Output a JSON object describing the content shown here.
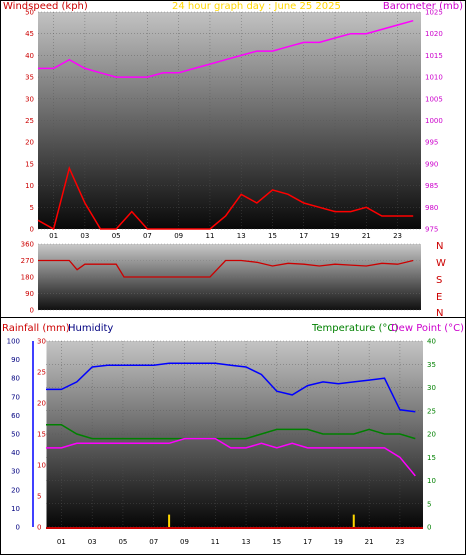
{
  "header": {
    "left_label": "Windspeed (kph)",
    "center_label": "24 hour graph day : June 25 2025",
    "right_label": "Barometer (mb)"
  },
  "direction_labels": [
    "N",
    "W",
    "S",
    "E",
    "N"
  ],
  "lower_header": {
    "rainfall_label": "Rainfall (mm)",
    "humidity_label": "Humidity",
    "temperature_label": "Temperature (°C)",
    "dewpoint_label": "Dew Point (°C)"
  },
  "colors": {
    "wind": "#ff0000",
    "gust": "#ff0000",
    "barometer": "#ff00ff",
    "direction": "#cc0000",
    "humidity": "#0000ff",
    "temperature": "#008000",
    "dewpoint": "#ff00ff",
    "rainfall": "#ffd700",
    "title": "#ffd700",
    "rain_axis": "#0000ff",
    "label_red": "#cc0000",
    "label_navy": "#000080",
    "label_green": "#008000",
    "label_magenta": "#cc00cc"
  },
  "x_ticks": [
    "01",
    "03",
    "05",
    "07",
    "09",
    "11",
    "13",
    "15",
    "17",
    "19",
    "21",
    "23"
  ],
  "chart_data": [
    {
      "type": "line",
      "title": "24 hour graph day : June 25 2025",
      "x": [
        0,
        1,
        2,
        3,
        4,
        5,
        6,
        7,
        8,
        9,
        10,
        11,
        12,
        13,
        14,
        15,
        16,
        17,
        18,
        19,
        20,
        21,
        22,
        23,
        24
      ],
      "series": [
        {
          "name": "Barometer (mb)",
          "axis": "right",
          "values": [
            1012,
            1012,
            1014,
            1012,
            1011,
            1010,
            1010,
            1010,
            1011,
            1011,
            1012,
            1013,
            1014,
            1015,
            1016,
            1016,
            1017,
            1018,
            1018,
            1019,
            1020,
            1020,
            1021,
            1022,
            1023
          ]
        },
        {
          "name": "Windspeed (kph)",
          "axis": "left",
          "values": [
            2,
            0,
            14,
            6,
            0,
            0,
            4,
            0,
            0,
            0,
            0,
            0,
            3,
            8,
            6,
            9,
            8,
            6,
            5,
            4,
            4,
            5,
            3,
            3,
            3
          ]
        }
      ],
      "ylim_left": [
        0,
        50
      ],
      "y_ticks_left": [
        0,
        5,
        10,
        15,
        20,
        25,
        30,
        35,
        40,
        45,
        50
      ],
      "ylim_right": [
        975,
        1025
      ],
      "y_ticks_right": [
        975,
        980,
        985,
        990,
        995,
        1000,
        1005,
        1010,
        1015,
        1020,
        1025
      ]
    },
    {
      "type": "line",
      "x": [
        0,
        1,
        2,
        2.5,
        3,
        4,
        5,
        5.5,
        6,
        7,
        8,
        9,
        10,
        11,
        12,
        13,
        14,
        15,
        16,
        17,
        18,
        19,
        20,
        21,
        22,
        23,
        24
      ],
      "series": [
        {
          "name": "Wind direction",
          "values": [
            270,
            270,
            270,
            220,
            250,
            250,
            250,
            180,
            180,
            180,
            180,
            180,
            180,
            180,
            270,
            270,
            260,
            240,
            255,
            250,
            240,
            250,
            245,
            240,
            255,
            250,
            270
          ]
        }
      ],
      "ylim": [
        0,
        360
      ],
      "y_ticks": [
        0,
        90,
        180,
        270,
        360
      ]
    },
    {
      "type": "line",
      "x": [
        0,
        1,
        2,
        3,
        4,
        5,
        6,
        7,
        8,
        9,
        10,
        11,
        12,
        13,
        14,
        15,
        16,
        17,
        18,
        19,
        20,
        21,
        22,
        23,
        24
      ],
      "series": [
        {
          "name": "Humidity",
          "axis": "humidity",
          "values": [
            74,
            74,
            78,
            86,
            87,
            87,
            87,
            87,
            88,
            88,
            88,
            88,
            87,
            86,
            82,
            73,
            71,
            76,
            78,
            77,
            78,
            79,
            80,
            63,
            62
          ]
        },
        {
          "name": "Temperature (°C)",
          "axis": "temperature",
          "values": [
            22,
            22,
            20,
            19,
            19,
            19,
            19,
            19,
            19,
            19,
            19,
            19,
            19,
            19,
            20,
            21,
            21,
            21,
            20,
            20,
            20,
            21,
            20,
            20,
            19
          ]
        },
        {
          "name": "Dew Point (°C)",
          "axis": "temperature",
          "values": [
            17,
            17,
            18,
            18,
            18,
            18,
            18,
            18,
            18,
            19,
            19,
            19,
            17,
            17,
            18,
            17,
            18,
            17,
            17,
            17,
            17,
            17,
            17,
            15,
            11
          ]
        },
        {
          "name": "Rainfall (mm)",
          "axis": "rainfall",
          "values": [
            0,
            0,
            0,
            0,
            0,
            0,
            0,
            0,
            2,
            0,
            0,
            0,
            0,
            0,
            0,
            0,
            0,
            0,
            0,
            0,
            2,
            0,
            0,
            0,
            0
          ]
        }
      ],
      "ylim_humidity": [
        0,
        100
      ],
      "y_ticks_humidity": [
        0,
        10,
        20,
        30,
        40,
        50,
        60,
        70,
        80,
        90,
        100
      ],
      "ylim_rainfall": [
        0,
        30
      ],
      "y_ticks_rainfall": [
        0,
        5,
        10,
        15,
        20,
        25,
        30
      ],
      "ylim_temperature": [
        0,
        40
      ],
      "y_ticks_temperature": [
        0,
        5,
        10,
        15,
        20,
        25,
        30,
        35,
        40
      ]
    }
  ]
}
